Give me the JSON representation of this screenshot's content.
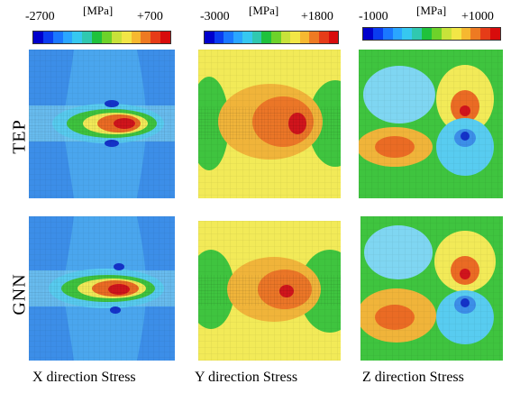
{
  "scales": [
    {
      "min_label": "-2700",
      "unit_label": "[MPa]",
      "max_label": "+700"
    },
    {
      "min_label": "-3000",
      "unit_label": "[MPa]",
      "max_label": "+1800"
    },
    {
      "min_label": "-1000",
      "unit_label": "[MPa]",
      "max_label": "+1000"
    }
  ],
  "colorbar": [
    "#0000cc",
    "#0a3cf0",
    "#1a78ff",
    "#2aa6ff",
    "#36c8f0",
    "#30c8b0",
    "#1fc23c",
    "#6dd22a",
    "#c8e23a",
    "#f2e646",
    "#f6b830",
    "#ee7a22",
    "#e63c18",
    "#d80c0c"
  ],
  "row_labels": [
    "TEP",
    "GNN"
  ],
  "captions": [
    "X direction Stress",
    "Y direction Stress",
    "Z direction Stress"
  ],
  "colors": {
    "red": "#d0141c",
    "orange": "#ea6b24",
    "amber": "#f0b43a",
    "yellow": "#f2ea58",
    "green": "#3fc43f",
    "cyan": "#58ccf0",
    "lightblue": "#7fd6f2",
    "blue": "#3c8ee8",
    "midblue": "#4aa6ee",
    "navy": "#1432c8"
  }
}
